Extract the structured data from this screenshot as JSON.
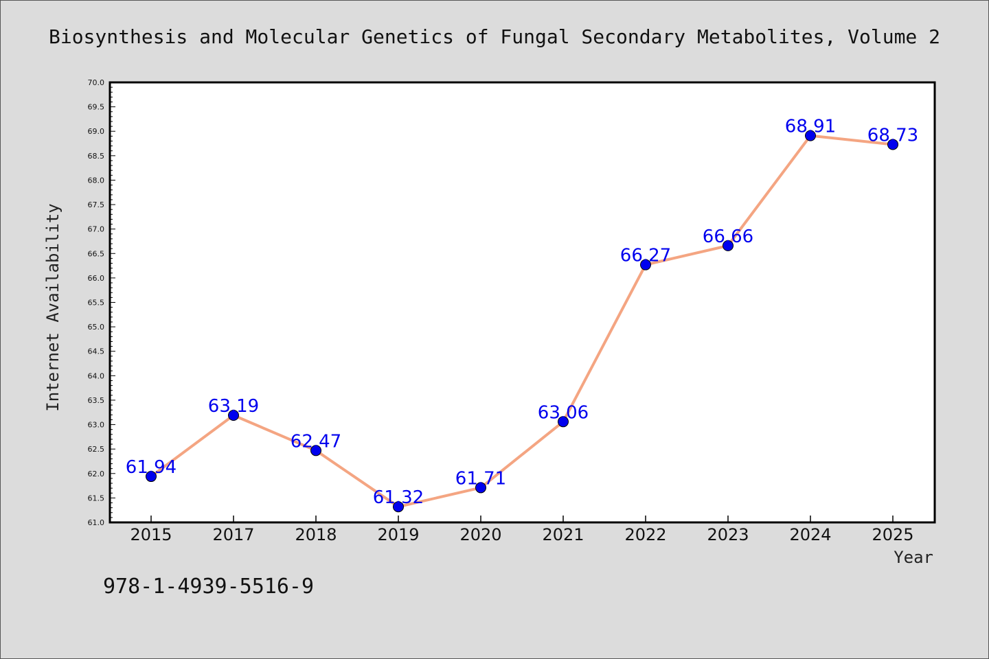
{
  "chart_data": {
    "type": "line",
    "title": "Biosynthesis and Molecular Genetics of Fungal Secondary Metabolites, Volume 2",
    "xlabel": "Year",
    "ylabel": "Internet Availability",
    "categories": [
      "2015",
      "2017",
      "2018",
      "2019",
      "2020",
      "2021",
      "2022",
      "2023",
      "2024",
      "2025"
    ],
    "series": [
      {
        "values": [
          61.94,
          63.19,
          62.47,
          61.32,
          61.71,
          63.06,
          66.27,
          66.66,
          68.91,
          68.73
        ]
      }
    ],
    "data_labels": [
      "61.94",
      "63.19",
      "62.47",
      "61.32",
      "61.71",
      "63.06",
      "66.27",
      "66.66",
      "68.91",
      "68.73"
    ],
    "ylim": [
      61.0,
      70.0
    ],
    "yticks": [
      "61.0",
      "61.5",
      "62.0",
      "62.5",
      "63.0",
      "63.5",
      "64.0",
      "64.5",
      "65.0",
      "65.5",
      "66.0",
      "66.5",
      "67.0",
      "67.5",
      "68.0",
      "68.5",
      "69.0",
      "69.5",
      "70.0"
    ],
    "grid": false,
    "legend": "none",
    "colors": {
      "line": "#f4a582",
      "marker": "#0000ee",
      "label": "#0000ee",
      "background": "#dcdcdc",
      "plot_background": "#ffffff"
    }
  },
  "footer": {
    "isbn": "978-1-4939-5516-9"
  }
}
